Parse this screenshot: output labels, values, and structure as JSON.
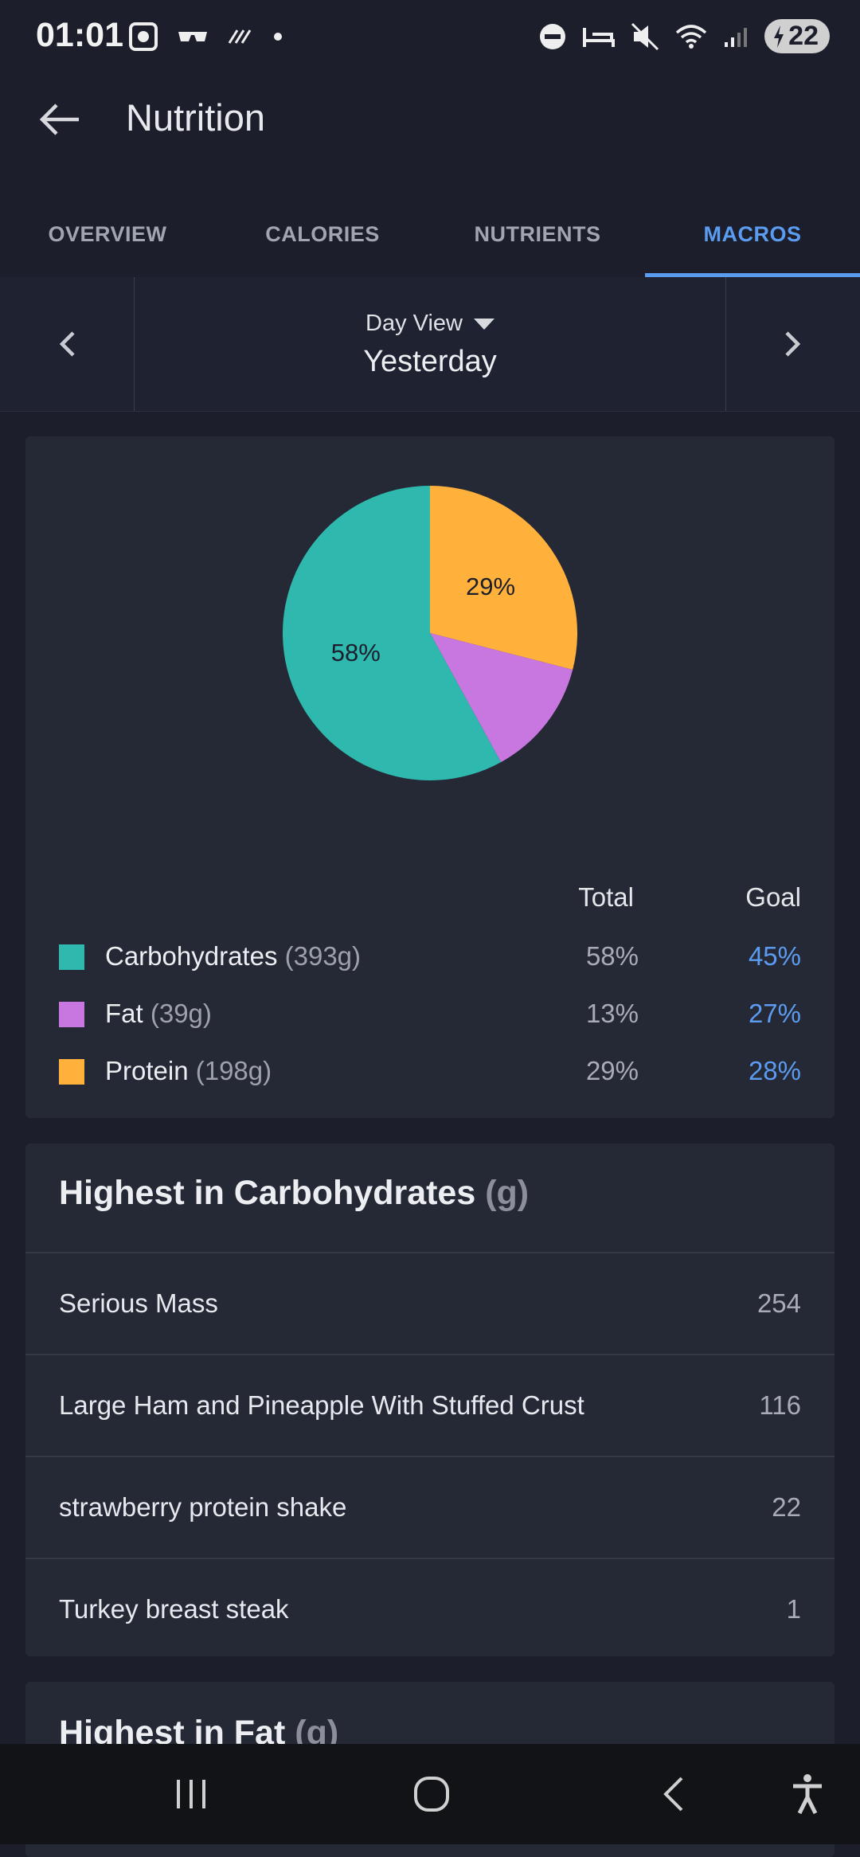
{
  "status_bar": {
    "time": "01:01",
    "battery": "22",
    "icons": [
      "screenshot-icon",
      "glasses-icon",
      "stripes-icon",
      "dot-icon",
      "dnd-icon",
      "sleep-icon",
      "mute-icon",
      "wifi-icon",
      "signal-icon",
      "battery-icon"
    ]
  },
  "appbar": {
    "title": "Nutrition"
  },
  "tabs": [
    {
      "label": "OVERVIEW",
      "active": false
    },
    {
      "label": "CALORIES",
      "active": false
    },
    {
      "label": "NUTRIENTS",
      "active": false
    },
    {
      "label": "MACROS",
      "active": true
    }
  ],
  "date_selector": {
    "mode": "Day View",
    "date": "Yesterday"
  },
  "chart_data": {
    "type": "pie",
    "slices": [
      {
        "label": "Protein",
        "value": 29,
        "color": "#ffb13b"
      },
      {
        "label": "Fat",
        "value": 13,
        "color": "#c877e0"
      },
      {
        "label": "Carbohydrates",
        "value": 58,
        "color": "#2fb8ad"
      }
    ],
    "data_labels": [
      "29%",
      "58%"
    ]
  },
  "legend": {
    "total_header": "Total",
    "goal_header": "Goal",
    "rows": [
      {
        "name": "Carbohydrates",
        "grams": "(393g)",
        "total": "58%",
        "goal": "45%",
        "color": "#2fb8ad"
      },
      {
        "name": "Fat",
        "grams": "(39g)",
        "total": "13%",
        "goal": "27%",
        "color": "#c877e0"
      },
      {
        "name": "Protein",
        "grams": "(198g)",
        "total": "29%",
        "goal": "28%",
        "color": "#ffb13b"
      }
    ]
  },
  "highest_carbs": {
    "title": "Highest in Carbohydrates",
    "unit": "(g)",
    "items": [
      {
        "name": "Serious Mass",
        "value": "254"
      },
      {
        "name": "Large Ham and Pineapple With Stuffed Crust",
        "value": "116"
      },
      {
        "name": "strawberry protein shake",
        "value": "22"
      },
      {
        "name": "Turkey breast steak",
        "value": "1"
      }
    ]
  },
  "highest_fat": {
    "title": "Highest in Fat",
    "unit": "(g)"
  },
  "colors": {
    "accent": "#5b9cf0",
    "background": "#1c1f2b",
    "card": "#252835"
  }
}
